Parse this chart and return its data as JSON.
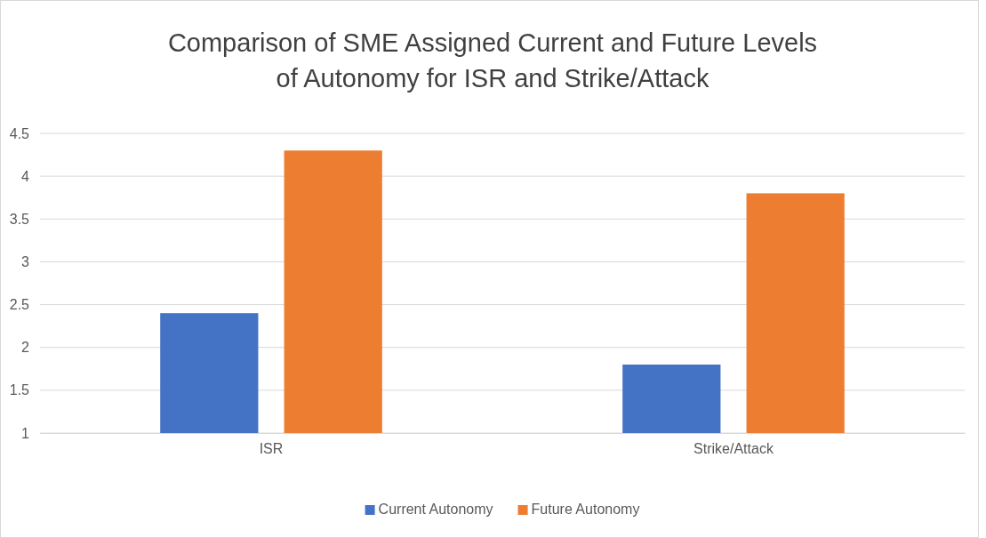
{
  "chart_data": {
    "type": "bar",
    "title": "Comparison of SME Assigned Current and Future Levels\nof Autonomy for ISR and Strike/Attack",
    "categories": [
      "ISR",
      "Strike/Attack"
    ],
    "series": [
      {
        "name": "Current Autonomy",
        "color": "#4472c4",
        "values": [
          2.4,
          1.8
        ]
      },
      {
        "name": "Future Autonomy",
        "color": "#ed7d31",
        "values": [
          4.3,
          3.8
        ]
      }
    ],
    "ylim": [
      1,
      4.5
    ],
    "yticks": [
      1,
      1.5,
      2,
      2.5,
      3,
      3.5,
      4,
      4.5
    ],
    "grid": "y",
    "legend": "bottom"
  }
}
